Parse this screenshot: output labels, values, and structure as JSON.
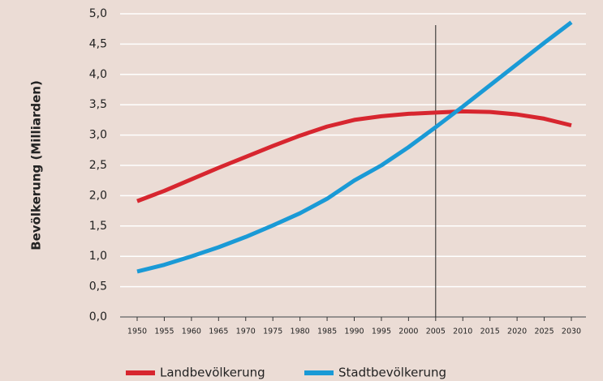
{
  "chart_data": {
    "type": "line",
    "y_label": "Bevölkerung (Milliarden)",
    "x": [
      1950,
      1955,
      1960,
      1965,
      1970,
      1975,
      1980,
      1985,
      1990,
      1995,
      2000,
      2005,
      2010,
      2015,
      2020,
      2025,
      2030
    ],
    "series": [
      {
        "name": "Landbevölkerung",
        "color": "#d7262f",
        "values": [
          1.91,
          2.08,
          2.27,
          2.46,
          2.64,
          2.82,
          2.99,
          3.14,
          3.25,
          3.31,
          3.35,
          3.37,
          3.39,
          3.38,
          3.34,
          3.27,
          3.16
        ]
      },
      {
        "name": "Stadtbevölkerung",
        "color": "#1a9ad6",
        "values": [
          0.75,
          0.86,
          1.0,
          1.15,
          1.32,
          1.51,
          1.71,
          1.95,
          2.25,
          2.5,
          2.8,
          3.13,
          3.47,
          3.82,
          4.17,
          4.52,
          4.86
        ]
      }
    ],
    "xlim": [
      1950,
      2030
    ],
    "xticks": [
      1950,
      1955,
      1960,
      1965,
      1970,
      1975,
      1980,
      1985,
      1990,
      1995,
      2000,
      2005,
      2010,
      2015,
      2020,
      2025,
      2030
    ],
    "ylim": [
      0,
      5
    ],
    "yticks": [
      {
        "value": 0,
        "label": "0,0"
      },
      {
        "value": 0.5,
        "label": "0,5"
      },
      {
        "value": 1,
        "label": "1,0"
      },
      {
        "value": 1.5,
        "label": "1,5"
      },
      {
        "value": 2,
        "label": "2,0"
      },
      {
        "value": 2.5,
        "label": "2,5"
      },
      {
        "value": 3,
        "label": "3,0"
      },
      {
        "value": 3.5,
        "label": "3,5"
      },
      {
        "value": 4,
        "label": "4,0"
      },
      {
        "value": 4.5,
        "label": "4,5"
      },
      {
        "value": 5,
        "label": "5,0"
      }
    ],
    "reference_x": 2005,
    "grid": true
  }
}
